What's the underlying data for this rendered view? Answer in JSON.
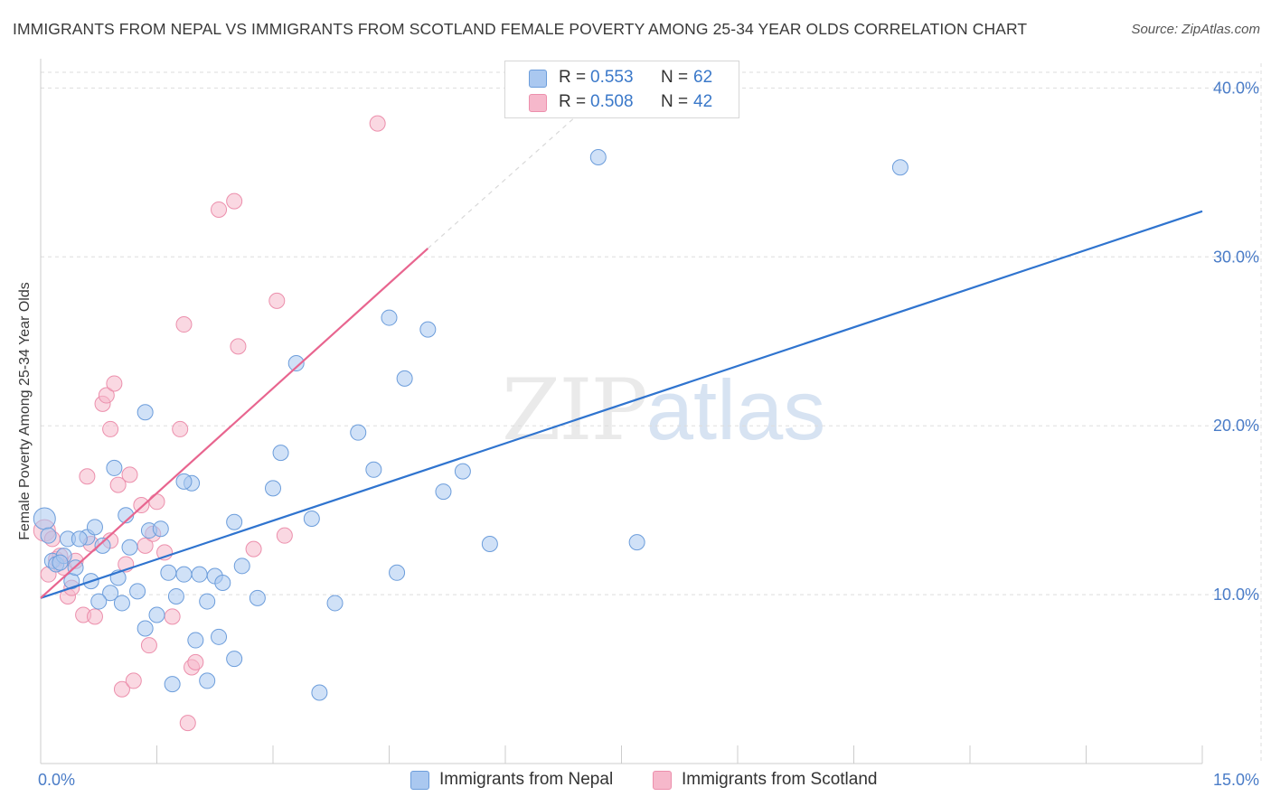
{
  "title": "IMMIGRANTS FROM NEPAL VS IMMIGRANTS FROM SCOTLAND FEMALE POVERTY AMONG 25-34 YEAR OLDS CORRELATION CHART",
  "source": "Source: ZipAtlas.com",
  "watermark": {
    "zip": "ZIP",
    "atlas": "atlas"
  },
  "legend": {
    "rows": [
      {
        "r_label": "R =",
        "r_value": "0.553",
        "n_label": "N =",
        "n_value": "62"
      },
      {
        "r_label": "R =",
        "r_value": "0.508",
        "n_label": "N =",
        "n_value": "42"
      }
    ]
  },
  "bottom_legend": [
    "Immigrants from Nepal",
    "Immigrants from Scotland"
  ],
  "colors": {
    "nepal_fill": "#aac8f0",
    "nepal_stroke": "#6c9ddb",
    "nepal_line": "#2f74cf",
    "scotland_fill": "#f6b8cb",
    "scotland_stroke": "#ec8fac",
    "scotland_line": "#e8658f",
    "tick_text": "#4a7cc7",
    "grid": "#dddddd"
  },
  "chart_data": {
    "type": "scatter",
    "title": "IMMIGRANTS FROM NEPAL VS IMMIGRANTS FROM SCOTLAND FEMALE POVERTY AMONG 25-34 YEAR OLDS CORRELATION CHART",
    "xlabel": "",
    "ylabel": "Female Poverty Among 25-34 Year Olds",
    "xlim": [
      0,
      15
    ],
    "ylim": [
      0,
      42
    ],
    "x_tick_labels": [
      "0.0%",
      "15.0%"
    ],
    "y_ticks": [
      10,
      20,
      30,
      40
    ],
    "y_tick_labels": [
      "10.0%",
      "20.0%",
      "30.0%",
      "40.0%"
    ],
    "grid": true,
    "legend_position": "top-center",
    "series": [
      {
        "name": "Immigrants from Nepal",
        "r": 0.553,
        "n": 62,
        "trend": {
          "x": [
            0.0,
            15.0
          ],
          "y": [
            9.8,
            32.7
          ]
        },
        "points": [
          [
            0.05,
            14.5
          ],
          [
            0.1,
            13.5
          ],
          [
            0.15,
            12.0
          ],
          [
            0.2,
            11.8
          ],
          [
            0.3,
            12.3
          ],
          [
            0.35,
            13.3
          ],
          [
            0.4,
            10.8
          ],
          [
            0.45,
            11.6
          ],
          [
            0.6,
            13.4
          ],
          [
            0.65,
            10.8
          ],
          [
            0.7,
            14.0
          ],
          [
            0.8,
            12.9
          ],
          [
            0.9,
            10.1
          ],
          [
            0.95,
            17.5
          ],
          [
            1.0,
            11.0
          ],
          [
            1.05,
            9.5
          ],
          [
            1.1,
            14.7
          ],
          [
            1.15,
            12.8
          ],
          [
            1.25,
            10.2
          ],
          [
            1.35,
            8.0
          ],
          [
            1.4,
            13.8
          ],
          [
            1.55,
            13.9
          ],
          [
            1.65,
            11.3
          ],
          [
            1.75,
            9.9
          ],
          [
            1.85,
            11.2
          ],
          [
            1.95,
            16.6
          ],
          [
            2.0,
            7.3
          ],
          [
            2.05,
            11.2
          ],
          [
            2.15,
            9.6
          ],
          [
            2.25,
            11.1
          ],
          [
            2.3,
            7.5
          ],
          [
            2.35,
            10.7
          ],
          [
            2.5,
            6.2
          ],
          [
            2.6,
            11.7
          ],
          [
            2.8,
            9.8
          ],
          [
            3.0,
            16.3
          ],
          [
            3.1,
            18.4
          ],
          [
            3.3,
            23.7
          ],
          [
            3.5,
            14.5
          ],
          [
            3.6,
            4.2
          ],
          [
            4.1,
            19.6
          ],
          [
            4.3,
            17.4
          ],
          [
            4.5,
            26.4
          ],
          [
            4.6,
            11.3
          ],
          [
            4.7,
            22.8
          ],
          [
            5.0,
            25.7
          ],
          [
            5.2,
            16.1
          ],
          [
            5.8,
            13.0
          ],
          [
            1.35,
            20.8
          ],
          [
            1.5,
            8.8
          ],
          [
            1.7,
            4.7
          ],
          [
            0.75,
            9.6
          ],
          [
            2.15,
            4.9
          ],
          [
            2.5,
            14.3
          ],
          [
            3.8,
            9.5
          ],
          [
            5.45,
            17.3
          ],
          [
            7.2,
            35.9
          ],
          [
            7.7,
            13.1
          ],
          [
            11.1,
            35.3
          ],
          [
            1.85,
            16.7
          ],
          [
            0.5,
            13.3
          ],
          [
            0.25,
            11.9
          ]
        ]
      },
      {
        "name": "Immigrants from Scotland",
        "r": 0.508,
        "n": 42,
        "trend": {
          "x": [
            0.0,
            5.0
          ],
          "y": [
            9.8,
            30.5
          ]
        },
        "trend_ext": {
          "x": [
            5.0,
            7.2
          ],
          "y": [
            30.5,
            39.5
          ]
        },
        "points": [
          [
            0.05,
            13.8
          ],
          [
            0.1,
            11.2
          ],
          [
            0.15,
            13.3
          ],
          [
            0.2,
            12.1
          ],
          [
            0.3,
            11.6
          ],
          [
            0.35,
            9.9
          ],
          [
            0.4,
            10.4
          ],
          [
            0.45,
            12.0
          ],
          [
            0.55,
            8.8
          ],
          [
            0.6,
            17.0
          ],
          [
            0.7,
            8.7
          ],
          [
            0.8,
            21.3
          ],
          [
            0.85,
            21.8
          ],
          [
            0.9,
            19.8
          ],
          [
            0.95,
            22.5
          ],
          [
            1.0,
            16.5
          ],
          [
            1.05,
            4.4
          ],
          [
            1.15,
            17.1
          ],
          [
            1.2,
            4.9
          ],
          [
            1.3,
            15.3
          ],
          [
            1.35,
            12.9
          ],
          [
            1.4,
            7.0
          ],
          [
            1.45,
            13.6
          ],
          [
            1.5,
            15.5
          ],
          [
            1.6,
            12.5
          ],
          [
            1.7,
            8.7
          ],
          [
            1.8,
            19.8
          ],
          [
            1.85,
            26.0
          ],
          [
            1.9,
            2.4
          ],
          [
            1.95,
            5.7
          ],
          [
            2.0,
            6.0
          ],
          [
            2.3,
            32.8
          ],
          [
            2.5,
            33.3
          ],
          [
            2.55,
            24.7
          ],
          [
            2.75,
            12.7
          ],
          [
            3.05,
            27.4
          ],
          [
            3.15,
            13.5
          ],
          [
            4.35,
            37.9
          ],
          [
            0.25,
            12.3
          ],
          [
            0.65,
            13.0
          ],
          [
            1.1,
            11.8
          ],
          [
            0.9,
            13.2
          ]
        ]
      }
    ]
  }
}
